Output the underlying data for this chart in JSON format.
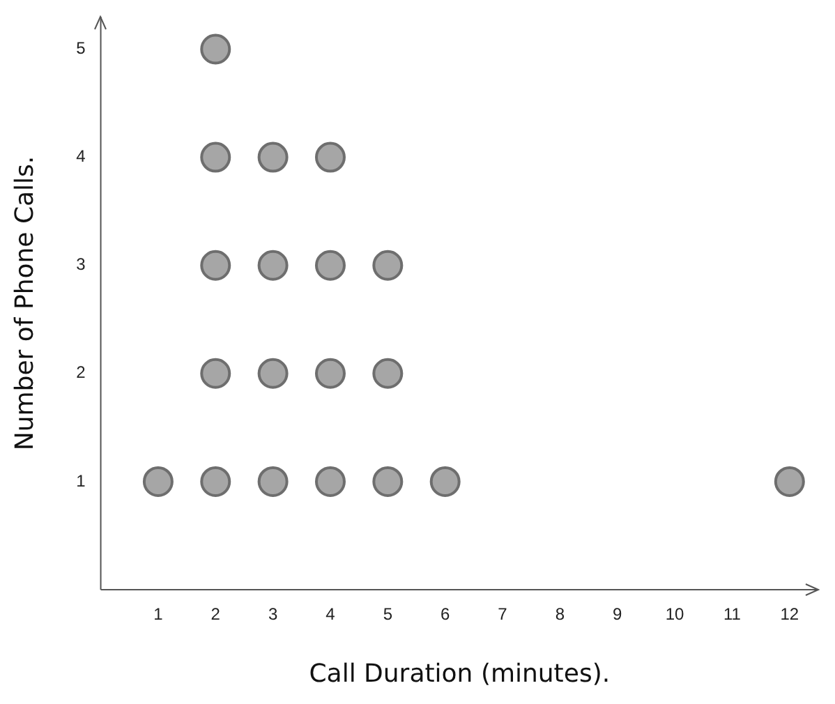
{
  "chart_data": {
    "type": "scatter",
    "xlabel": "Call Duration (minutes).",
    "ylabel": "Number of Phone Calls.",
    "x": [
      1,
      2,
      2,
      2,
      2,
      2,
      3,
      3,
      3,
      3,
      4,
      4,
      4,
      4,
      5,
      5,
      5,
      6,
      12
    ],
    "series": [
      {
        "color": "#a6a6a6",
        "values": [
          1,
          1,
          2,
          3,
          4,
          5,
          1,
          2,
          3,
          4,
          1,
          2,
          3,
          4,
          1,
          2,
          3,
          1,
          1
        ]
      }
    ],
    "xlim": [
      0,
      12.5
    ],
    "ylim": [
      0,
      5.3
    ],
    "xticks": [
      1,
      2,
      3,
      4,
      5,
      6,
      7,
      8,
      9,
      10,
      11,
      12
    ],
    "yticks": [
      1,
      2,
      3,
      4,
      5
    ],
    "grid": false,
    "legend": false,
    "marker": "circle"
  }
}
